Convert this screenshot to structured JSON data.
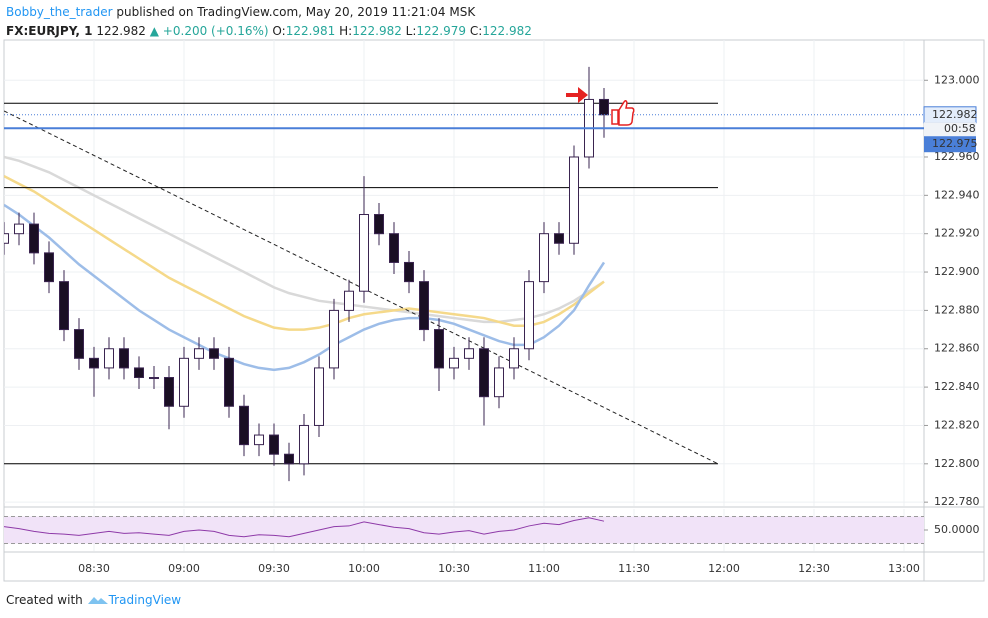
{
  "header": {
    "author": "Bobby_the_trader",
    "published": "published on TradingView.com, May 20, 2019 11:21:04 MSK",
    "symbol": "FX:EURJPY, 1",
    "price": "122.982",
    "change": "▲ +0.200 (+0.16%)",
    "o_label": "O:",
    "o": "122.981",
    "h_label": "H:",
    "h": "122.982",
    "l_label": "L:",
    "l": "122.979",
    "c_label": "C:",
    "c": "122.982"
  },
  "footer": {
    "created": "Created with",
    "brand": "TradingView"
  },
  "chart_data": {
    "type": "candlestick",
    "x": [
      "08:00",
      "08:05",
      "08:10",
      "08:15",
      "08:20",
      "08:25",
      "08:30",
      "08:35",
      "08:40",
      "08:45",
      "08:50",
      "08:55",
      "09:00",
      "09:05",
      "09:10",
      "09:15",
      "09:20",
      "09:25",
      "09:30",
      "09:35",
      "09:40",
      "09:45",
      "09:50",
      "09:55",
      "10:00",
      "10:05",
      "10:10",
      "10:15",
      "10:20",
      "10:25",
      "10:30",
      "10:35",
      "10:40",
      "10:45",
      "10:50",
      "10:55",
      "11:00",
      "11:05",
      "11:10",
      "11:15",
      "11:20"
    ],
    "open": [
      122.915,
      122.92,
      122.925,
      122.91,
      122.895,
      122.87,
      122.855,
      122.85,
      122.86,
      122.85,
      122.845,
      122.845,
      122.83,
      122.855,
      122.86,
      122.855,
      122.83,
      122.81,
      122.815,
      122.805,
      122.8,
      122.82,
      122.85,
      122.88,
      122.89,
      122.93,
      122.92,
      122.905,
      122.895,
      122.87,
      122.85,
      122.855,
      122.86,
      122.835,
      122.85,
      122.86,
      122.895,
      122.92,
      122.915,
      122.96,
      122.99
    ],
    "high": [
      122.926,
      122.931,
      122.931,
      122.916,
      122.901,
      122.876,
      122.861,
      122.866,
      122.866,
      122.856,
      122.851,
      122.851,
      122.861,
      122.866,
      122.866,
      122.861,
      122.836,
      122.821,
      122.821,
      122.811,
      122.826,
      122.856,
      122.886,
      122.896,
      122.95,
      122.936,
      122.926,
      122.911,
      122.901,
      122.876,
      122.861,
      122.866,
      122.866,
      122.856,
      122.866,
      122.901,
      122.926,
      122.926,
      122.966,
      123.007,
      122.996
    ],
    "low": [
      122.909,
      122.914,
      122.904,
      122.889,
      122.864,
      122.849,
      122.835,
      122.844,
      122.844,
      122.839,
      122.839,
      122.818,
      122.824,
      122.849,
      122.849,
      122.824,
      122.804,
      122.804,
      122.799,
      122.791,
      122.794,
      122.814,
      122.844,
      122.874,
      122.884,
      122.914,
      122.899,
      122.889,
      122.864,
      122.838,
      122.844,
      122.849,
      122.82,
      122.829,
      122.844,
      122.854,
      122.889,
      122.909,
      122.909,
      122.954,
      122.97
    ],
    "close": [
      122.92,
      122.925,
      122.91,
      122.895,
      122.87,
      122.855,
      122.85,
      122.86,
      122.85,
      122.845,
      122.845,
      122.83,
      122.855,
      122.86,
      122.855,
      122.83,
      122.81,
      122.815,
      122.805,
      122.8,
      122.82,
      122.85,
      122.88,
      122.89,
      122.93,
      122.92,
      122.905,
      122.895,
      122.87,
      122.85,
      122.855,
      122.86,
      122.835,
      122.85,
      122.86,
      122.895,
      122.92,
      122.915,
      122.96,
      122.99,
      122.982
    ],
    "up_color": "#ffffff",
    "down_color": "#1a0f24",
    "outline_color": "#3a2450",
    "series": [
      {
        "color": "#d9d9d9",
        "values": [
          122.96,
          122.958,
          122.955,
          122.952,
          122.948,
          122.944,
          122.94,
          122.936,
          122.932,
          122.928,
          122.924,
          122.92,
          122.916,
          122.912,
          122.908,
          122.904,
          122.9,
          122.896,
          122.892,
          122.889,
          122.887,
          122.885,
          122.884,
          122.883,
          122.882,
          122.881,
          122.88,
          122.879,
          122.878,
          122.877,
          122.876,
          122.875,
          122.874,
          122.874,
          122.875,
          122.876,
          122.878,
          122.881,
          122.885,
          122.89,
          122.895
        ]
      },
      {
        "color": "#f5d98a",
        "values": [
          122.95,
          122.946,
          122.942,
          122.937,
          122.932,
          122.927,
          122.922,
          122.917,
          122.912,
          122.907,
          122.902,
          122.897,
          122.893,
          122.889,
          122.885,
          122.881,
          122.877,
          122.874,
          122.871,
          122.87,
          122.87,
          122.871,
          122.873,
          122.876,
          122.878,
          122.879,
          122.88,
          122.881,
          122.88,
          122.879,
          122.878,
          122.877,
          122.876,
          122.874,
          122.872,
          122.872,
          122.874,
          122.878,
          122.883,
          122.889,
          122.895
        ]
      },
      {
        "color": "#9dbde8",
        "values": [
          122.935,
          122.93,
          122.924,
          122.918,
          122.911,
          122.904,
          122.898,
          122.892,
          122.886,
          122.88,
          122.875,
          122.87,
          122.866,
          122.862,
          122.858,
          122.855,
          122.852,
          122.85,
          122.849,
          122.85,
          122.853,
          122.857,
          122.862,
          122.866,
          122.87,
          122.873,
          122.875,
          122.876,
          122.876,
          122.875,
          122.873,
          122.87,
          122.867,
          122.864,
          122.862,
          122.862,
          122.866,
          122.872,
          122.88,
          122.893,
          122.905
        ]
      }
    ],
    "levels": [
      122.988,
      122.944,
      122.8
    ],
    "levels_end": "11:58",
    "trendline": {
      "x": [
        "08:00",
        "11:58"
      ],
      "y": [
        122.984,
        122.8
      ]
    },
    "last_price": {
      "value": 122.982,
      "label": "122.982"
    },
    "countdown": "00:58",
    "price_line": {
      "value": 122.975,
      "label": "122.975"
    },
    "price_line_color": "#4a7fd8",
    "xlim": [
      "08:00",
      "13:05"
    ],
    "xticks": [
      "08:30",
      "09:00",
      "09:30",
      "10:00",
      "10:30",
      "11:00",
      "11:30",
      "12:00",
      "12:30",
      "13:00"
    ],
    "ylim": [
      122.778,
      123.021
    ],
    "yticks": [
      {
        "value": 122.78,
        "label": "122.780"
      },
      {
        "value": 122.8,
        "label": "122.800"
      },
      {
        "value": 122.82,
        "label": "122.820"
      },
      {
        "value": 122.84,
        "label": "122.840"
      },
      {
        "value": 122.86,
        "label": "122.860"
      },
      {
        "value": 122.88,
        "label": "122.880"
      },
      {
        "value": 122.9,
        "label": "122.900"
      },
      {
        "value": 122.92,
        "label": "122.920"
      },
      {
        "value": 122.94,
        "label": "122.940"
      },
      {
        "value": 122.96,
        "label": "122.960"
      },
      {
        "value": 123.0,
        "label": "123.000"
      }
    ],
    "grid": true,
    "rsi": {
      "color": "#8e3aa8",
      "values": [
        55,
        52,
        48,
        45,
        44,
        42,
        45,
        48,
        45,
        46,
        44,
        42,
        48,
        50,
        48,
        42,
        40,
        43,
        42,
        40,
        45,
        50,
        55,
        56,
        62,
        58,
        54,
        52,
        46,
        44,
        47,
        49,
        44,
        48,
        50,
        56,
        60,
        58,
        64,
        68,
        63
      ],
      "ylim": [
        19,
        81
      ],
      "yticks": [
        {
          "value": 50,
          "label": "50.0000"
        }
      ],
      "bands": [
        70,
        30
      ],
      "band_color": "#f1e3f8"
    }
  }
}
